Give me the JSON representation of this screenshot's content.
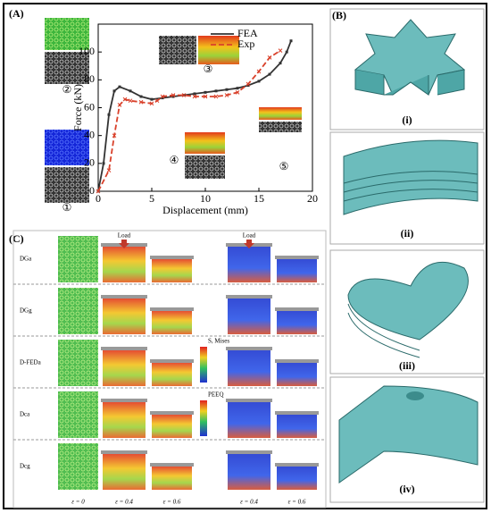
{
  "chart_data": {
    "type": "line",
    "panel_label": "(A)",
    "xlabel": "Displacement (mm)",
    "ylabel": "Force (kN)",
    "xlim": [
      0,
      20
    ],
    "ylim": [
      0,
      120
    ],
    "xticks": [
      0,
      5,
      10,
      15,
      20
    ],
    "yticks": [
      0,
      20,
      40,
      60,
      80,
      100
    ],
    "series": [
      {
        "name": "FEA",
        "color": "#333333",
        "x": [
          0,
          0.5,
          1,
          1.5,
          2,
          3,
          4,
          5,
          6,
          7,
          8,
          9,
          10,
          11,
          12,
          13,
          14,
          15,
          16,
          17,
          17.6,
          18
        ],
        "values": [
          0,
          20,
          55,
          72,
          75,
          72,
          68,
          66,
          67,
          68,
          69,
          70,
          71,
          72,
          73,
          74,
          76,
          79,
          84,
          92,
          100,
          108
        ]
      },
      {
        "name": "Exp",
        "color": "#d9412b",
        "x": [
          0,
          1,
          1.5,
          2,
          2.5,
          3,
          4,
          5,
          5.5,
          6,
          7,
          8,
          9,
          10,
          11,
          12,
          13,
          14,
          15,
          16,
          17
        ],
        "values": [
          0,
          15,
          40,
          62,
          66,
          65,
          64,
          63,
          65,
          68,
          69,
          69,
          68,
          68,
          68,
          69,
          71,
          77,
          86,
          96,
          101
        ]
      }
    ],
    "annotations": [
      "①",
      "②",
      "③",
      "④",
      "⑤"
    ]
  },
  "panel_b": {
    "label": "(B)",
    "views": [
      "(i)",
      "(ii)",
      "(iii)",
      "(iv)"
    ]
  },
  "panel_c": {
    "label": "(C)",
    "rows": [
      "DGa",
      "DGg",
      "D-FEDa",
      "Dca",
      "Dcg"
    ],
    "columns": [
      "ε = 0",
      "ε = 0.4",
      "ε = 0.6",
      "ε = 0.4",
      "ε = 0.6"
    ],
    "load_labels": [
      "Load",
      "Load"
    ],
    "legend_titles": [
      "S, Mises",
      "PEEQ"
    ]
  }
}
